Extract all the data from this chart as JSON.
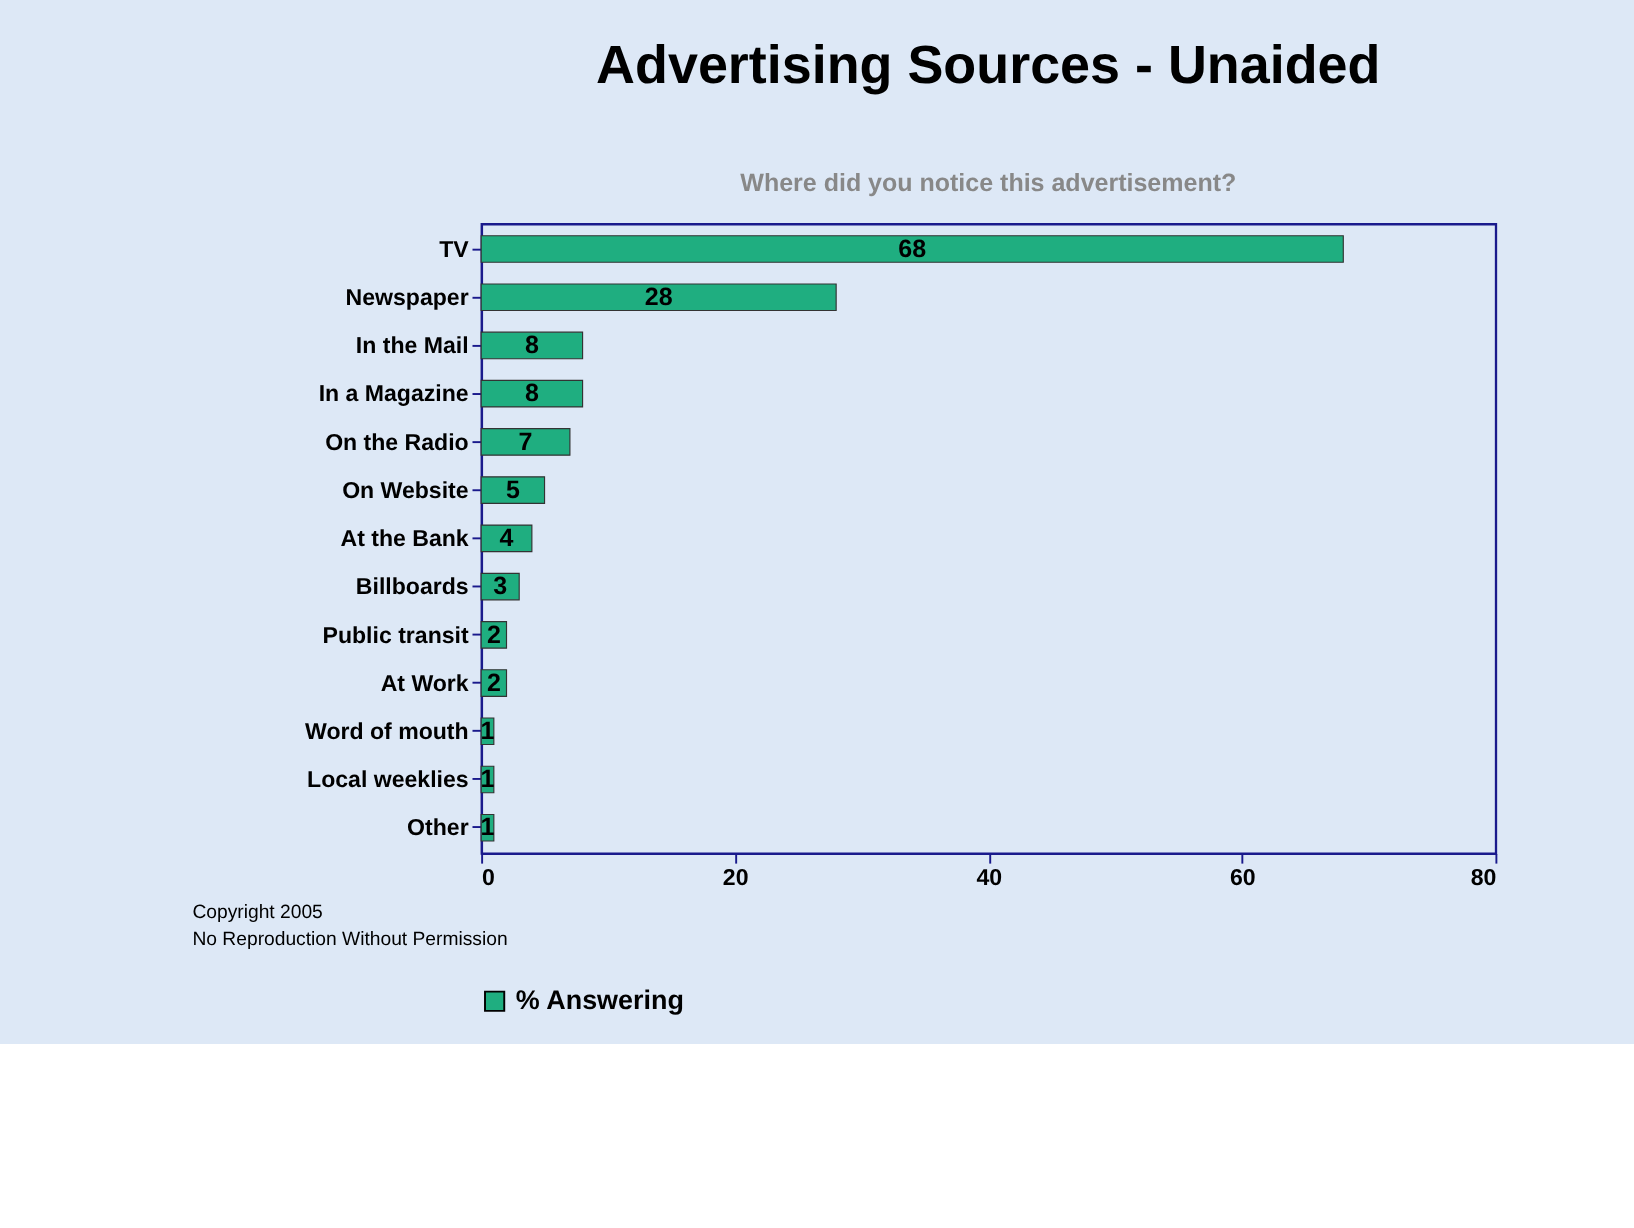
{
  "chart_data": {
    "type": "bar",
    "orientation": "horizontal",
    "title": "Advertising Sources - Unaided",
    "subtitle": "Where did you notice this advertisement?",
    "categories": [
      "TV",
      "Newspaper",
      "In the Mail",
      "In a Magazine",
      "On the Radio",
      "On Website",
      "At the Bank",
      "Billboards",
      "Public transit",
      "At Work",
      "Word of mouth",
      "Local weeklies",
      "Other"
    ],
    "series": [
      {
        "name": "% Answering",
        "color": "#1fae80",
        "values": [
          68,
          28,
          8,
          8,
          7,
          5,
          4,
          3,
          2,
          2,
          1,
          1,
          1
        ]
      }
    ],
    "xlim": [
      0,
      80
    ],
    "xticks": [
      0,
      20,
      40,
      60,
      80
    ],
    "grid": false,
    "legend": "bottom",
    "data_labels": true,
    "annotations": [
      "Copyright 2005",
      "No Reproduction Without Permission"
    ]
  }
}
